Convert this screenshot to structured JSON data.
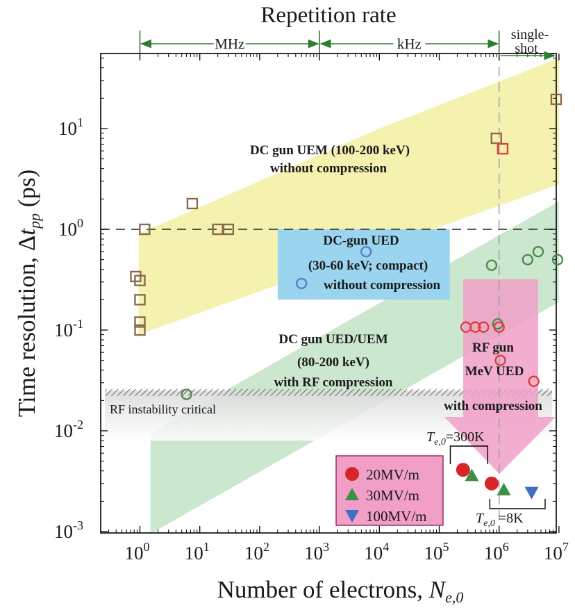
{
  "chart_data": {
    "type": "scatter",
    "title": "Repetition rate",
    "xlabel": "Number of electrons, ",
    "xlabel_var": "N",
    "xlabel_sub": "e,0",
    "ylabel": "Time resolution, Δ",
    "ylabel_var": "t",
    "ylabel_sub": "pp",
    "ylabel_unit": " (ps)",
    "xscale": "log",
    "yscale": "log",
    "xlim": [
      0.25,
      10000000
    ],
    "ylim": [
      0.001,
      50
    ],
    "x_ticks": [
      1,
      10,
      100,
      1000,
      10000,
      100000,
      1000000,
      10000000
    ],
    "x_tick_labels": [
      [
        "10",
        "0"
      ],
      [
        "10",
        "1"
      ],
      [
        "10",
        "2"
      ],
      [
        "10",
        "3"
      ],
      [
        "10",
        "4"
      ],
      [
        "10",
        "5"
      ],
      [
        "10",
        "6"
      ],
      [
        "10",
        "7"
      ]
    ],
    "y_ticks": [
      0.001,
      0.01,
      0.1,
      1,
      10
    ],
    "y_tick_labels": [
      [
        "10",
        "-3"
      ],
      [
        "10",
        "-2"
      ],
      [
        "10",
        "-1"
      ],
      [
        "10",
        "0"
      ],
      [
        "10",
        "1"
      ]
    ],
    "repetition_rate_ranges": [
      {
        "label": "MHz",
        "from": 1,
        "to": 1000
      },
      {
        "label": "kHz",
        "from": 1000,
        "to": 1000000
      },
      {
        "label": "single-",
        "label2": "shot",
        "from": 1000000,
        "to": null
      }
    ],
    "reference_lines": [
      {
        "orientation": "horizontal",
        "value": 1,
        "style": "dashed"
      },
      {
        "orientation": "vertical",
        "value": 1000000,
        "style": "dashed"
      }
    ],
    "regions": [
      {
        "name": "DC gun UEM (100-200 keV)",
        "line2": "without compression",
        "color": "#f4f1a6",
        "label_at": [
          45,
          5.5
        ]
      },
      {
        "name": "DC gun UED/UEM",
        "line2": "(80-200 keV)",
        "line3": "with RF compression",
        "color": "#c5e6c9",
        "label_at": [
          200,
          0.065
        ]
      },
      {
        "name": "DC-gun UED",
        "line2": "(30-60 keV; compact)",
        "line3": "without compression",
        "color": "#9ad4ee",
        "x": [
          200,
          150000
        ],
        "y": [
          0.2,
          1
        ]
      },
      {
        "name": "RF instability critical",
        "color": "#e6e6e6",
        "y": [
          0.008,
          0.025
        ]
      },
      {
        "name": "RF gun",
        "line2": "MeV UED",
        "line3": "with compression",
        "color": "#f19fc7"
      }
    ],
    "series": [
      {
        "marker": "square",
        "color": "#8b6b4a",
        "points": [
          [
            0.85,
            0.34
          ],
          [
            1.0,
            0.31
          ],
          [
            1.0,
            0.2
          ],
          [
            1.0,
            0.12
          ],
          [
            1.0,
            0.1
          ],
          [
            1.2,
            1.0
          ],
          [
            7.5,
            1.8
          ],
          [
            20,
            1.0
          ],
          [
            30,
            1.0
          ],
          [
            900000,
            8.0
          ],
          [
            9000000,
            19.5
          ]
        ]
      },
      {
        "marker": "square",
        "color": "#d9413e",
        "points": [
          [
            1150000,
            6.3
          ]
        ]
      },
      {
        "marker": "circle",
        "color": "#5a7fc9",
        "points": [
          [
            6000,
            0.6
          ],
          [
            500,
            0.29
          ]
        ]
      },
      {
        "marker": "circle",
        "color": "#4f8a4e",
        "points": [
          [
            6,
            0.023
          ],
          [
            750000,
            0.44
          ],
          [
            950000,
            0.115
          ],
          [
            3000000,
            0.5
          ],
          [
            4500000,
            0.6
          ],
          [
            9500000,
            0.5
          ]
        ]
      },
      {
        "marker": "circle",
        "color": "#d9413e",
        "points": [
          [
            280000,
            0.107
          ],
          [
            400000,
            0.107
          ],
          [
            550000,
            0.107
          ],
          [
            1000000,
            0.107
          ],
          [
            1050000,
            0.05
          ],
          [
            3800000,
            0.031
          ]
        ]
      }
    ],
    "field_legend": [
      {
        "name": "20MV/m",
        "marker": "circle",
        "color": "#d7262a"
      },
      {
        "name": "30MV/m",
        "marker": "triangle-up",
        "color": "#3f8f47"
      },
      {
        "name": "100MV/m",
        "marker": "triangle-down",
        "color": "#3f6fc3"
      }
    ],
    "field_points": [
      {
        "marker": "circle",
        "color": "#d7262a",
        "points": [
          [
            250000,
            0.0041
          ],
          [
            750000,
            0.003
          ]
        ]
      },
      {
        "marker": "triangle-up",
        "color": "#3f8f47",
        "points": [
          [
            350000,
            0.0036
          ],
          [
            1200000,
            0.0026
          ]
        ]
      },
      {
        "marker": "triangle-down",
        "color": "#3f6fc3",
        "points": [
          [
            3500000,
            0.00245
          ]
        ]
      }
    ],
    "annotations": [
      {
        "var": "T",
        "sub": "e,0",
        "text": "=300K"
      },
      {
        "var": "T",
        "sub": "e,0",
        "text": " =8K"
      }
    ],
    "legend_placement": "bottom-right",
    "grid": false
  }
}
